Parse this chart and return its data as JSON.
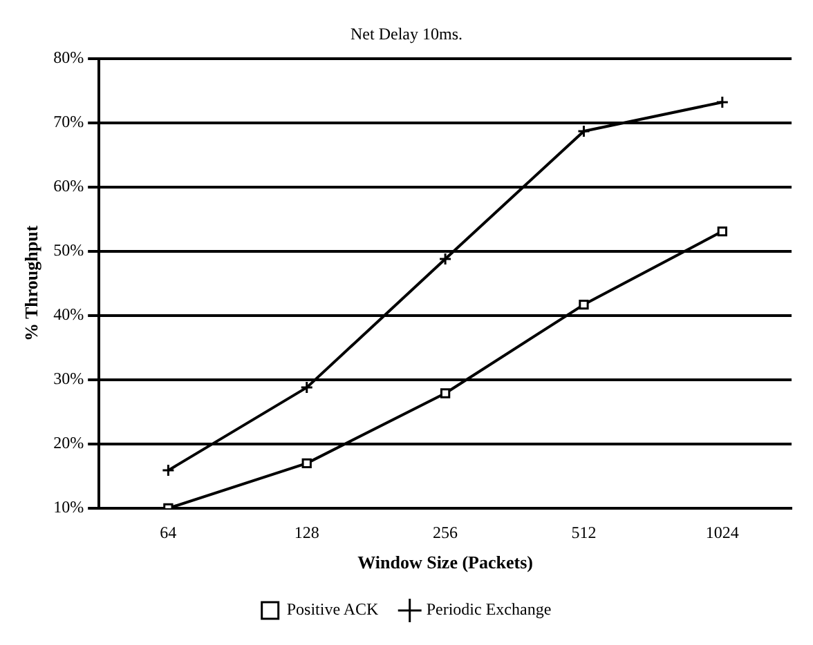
{
  "chart_data": {
    "type": "line",
    "title": "Net Delay 10ms.",
    "xlabel": "Window Size (Packets)",
    "ylabel": "% Throughput",
    "categories": [
      "64",
      "128",
      "256",
      "512",
      "1024"
    ],
    "ylim": [
      10,
      80
    ],
    "yticks": [
      {
        "value": 10,
        "label": "10%"
      },
      {
        "value": 20,
        "label": "20%"
      },
      {
        "value": 30,
        "label": "30%"
      },
      {
        "value": 40,
        "label": "40%"
      },
      {
        "value": 50,
        "label": "50%"
      },
      {
        "value": 60,
        "label": "60%"
      },
      {
        "value": 70,
        "label": "70%"
      },
      {
        "value": 80,
        "label": "80%"
      }
    ],
    "grid": "y",
    "legend": "bottom",
    "line_style": "solid",
    "series": [
      {
        "name": "Positive ACK",
        "color": "#000000",
        "marker": "square",
        "values": [
          10,
          17,
          27.9,
          41.7,
          53.1
        ]
      },
      {
        "name": "Periodic Exchange",
        "color": "#000000",
        "marker": "cross",
        "values": [
          15.9,
          28.8,
          48.8,
          68.7,
          73.2
        ]
      }
    ]
  }
}
